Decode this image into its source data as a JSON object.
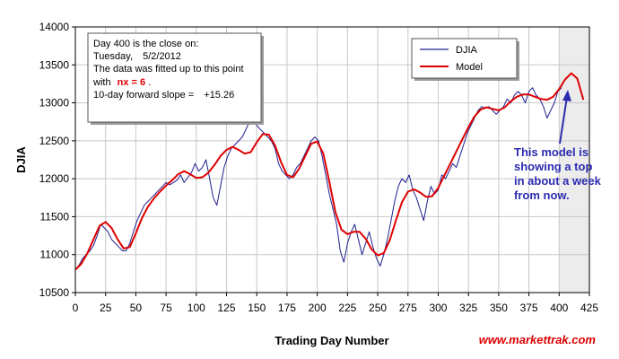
{
  "chart_data": {
    "type": "line",
    "title": "",
    "xlabel": "Trading Day Number",
    "ylabel": "DJIA",
    "xlim": [
      0,
      425
    ],
    "ylim": [
      10500,
      14000
    ],
    "x_ticks": [
      "0",
      "25",
      "50",
      "75",
      "100",
      "125",
      "150",
      "175",
      "200",
      "225",
      "250",
      "275",
      "300",
      "325",
      "350",
      "375",
      "400",
      "425"
    ],
    "y_ticks": [
      "10500",
      "11000",
      "11500",
      "12000",
      "12500",
      "13000",
      "13500",
      "14000"
    ],
    "grid": true,
    "legend_position": "top-right",
    "forecast_region": [
      400,
      425
    ],
    "series": [
      {
        "name": "DJIA",
        "color": "#1f1f8f",
        "points": [
          [
            0,
            10800
          ],
          [
            3,
            10860
          ],
          [
            6,
            10950
          ],
          [
            9,
            11000
          ],
          [
            12,
            11050
          ],
          [
            15,
            11120
          ],
          [
            18,
            11250
          ],
          [
            21,
            11400
          ],
          [
            24,
            11350
          ],
          [
            27,
            11300
          ],
          [
            30,
            11200
          ],
          [
            33,
            11150
          ],
          [
            36,
            11100
          ],
          [
            39,
            11050
          ],
          [
            42,
            11050
          ],
          [
            45,
            11150
          ],
          [
            48,
            11300
          ],
          [
            51,
            11450
          ],
          [
            54,
            11550
          ],
          [
            57,
            11650
          ],
          [
            60,
            11700
          ],
          [
            63,
            11750
          ],
          [
            66,
            11800
          ],
          [
            69,
            11850
          ],
          [
            72,
            11900
          ],
          [
            75,
            11950
          ],
          [
            78,
            11920
          ],
          [
            81,
            11950
          ],
          [
            84,
            11980
          ],
          [
            87,
            12050
          ],
          [
            90,
            11950
          ],
          [
            93,
            12020
          ],
          [
            96,
            12080
          ],
          [
            99,
            12200
          ],
          [
            102,
            12100
          ],
          [
            105,
            12150
          ],
          [
            108,
            12250
          ],
          [
            111,
            12000
          ],
          [
            114,
            11750
          ],
          [
            117,
            11650
          ],
          [
            120,
            11900
          ],
          [
            123,
            12150
          ],
          [
            126,
            12300
          ],
          [
            129,
            12400
          ],
          [
            132,
            12450
          ],
          [
            135,
            12500
          ],
          [
            138,
            12550
          ],
          [
            141,
            12650
          ],
          [
            144,
            12750
          ],
          [
            147,
            12800
          ],
          [
            150,
            12700
          ],
          [
            153,
            12650
          ],
          [
            156,
            12600
          ],
          [
            159,
            12550
          ],
          [
            162,
            12500
          ],
          [
            165,
            12400
          ],
          [
            168,
            12200
          ],
          [
            171,
            12100
          ],
          [
            174,
            12050
          ],
          [
            177,
            12000
          ],
          [
            180,
            12050
          ],
          [
            183,
            12150
          ],
          [
            186,
            12200
          ],
          [
            189,
            12300
          ],
          [
            192,
            12400
          ],
          [
            195,
            12500
          ],
          [
            198,
            12550
          ],
          [
            201,
            12500
          ],
          [
            204,
            12300
          ],
          [
            207,
            12050
          ],
          [
            210,
            11800
          ],
          [
            213,
            11600
          ],
          [
            216,
            11400
          ],
          [
            219,
            11050
          ],
          [
            222,
            10900
          ],
          [
            225,
            11150
          ],
          [
            228,
            11300
          ],
          [
            231,
            11400
          ],
          [
            234,
            11200
          ],
          [
            237,
            11000
          ],
          [
            240,
            11150
          ],
          [
            243,
            11300
          ],
          [
            246,
            11100
          ],
          [
            249,
            10950
          ],
          [
            252,
            10850
          ],
          [
            255,
            11000
          ],
          [
            258,
            11200
          ],
          [
            261,
            11450
          ],
          [
            264,
            11700
          ],
          [
            267,
            11900
          ],
          [
            270,
            12000
          ],
          [
            273,
            11950
          ],
          [
            276,
            12050
          ],
          [
            279,
            11850
          ],
          [
            282,
            11750
          ],
          [
            285,
            11600
          ],
          [
            288,
            11450
          ],
          [
            291,
            11700
          ],
          [
            294,
            11900
          ],
          [
            297,
            11800
          ],
          [
            300,
            11850
          ],
          [
            303,
            12050
          ],
          [
            306,
            12000
          ],
          [
            309,
            12100
          ],
          [
            312,
            12200
          ],
          [
            315,
            12150
          ],
          [
            318,
            12300
          ],
          [
            321,
            12450
          ],
          [
            324,
            12600
          ],
          [
            327,
            12700
          ],
          [
            330,
            12800
          ],
          [
            333,
            12900
          ],
          [
            336,
            12950
          ],
          [
            339,
            12930
          ],
          [
            342,
            12950
          ],
          [
            345,
            12900
          ],
          [
            348,
            12850
          ],
          [
            351,
            12900
          ],
          [
            354,
            12950
          ],
          [
            357,
            13050
          ],
          [
            360,
            13000
          ],
          [
            363,
            13100
          ],
          [
            366,
            13150
          ],
          [
            369,
            13100
          ],
          [
            372,
            13000
          ],
          [
            375,
            13150
          ],
          [
            378,
            13200
          ],
          [
            381,
            13100
          ],
          [
            384,
            13050
          ],
          [
            387,
            12950
          ],
          [
            390,
            12800
          ],
          [
            393,
            12900
          ],
          [
            396,
            13000
          ],
          [
            399,
            13150
          ],
          [
            402,
            13200
          ]
        ]
      },
      {
        "name": "Model",
        "color": "#e00000",
        "points": [
          [
            0,
            10800
          ],
          [
            5,
            10880
          ],
          [
            10,
            11020
          ],
          [
            15,
            11200
          ],
          [
            20,
            11380
          ],
          [
            25,
            11430
          ],
          [
            30,
            11350
          ],
          [
            35,
            11200
          ],
          [
            40,
            11080
          ],
          [
            45,
            11100
          ],
          [
            50,
            11280
          ],
          [
            55,
            11480
          ],
          [
            60,
            11630
          ],
          [
            65,
            11740
          ],
          [
            70,
            11830
          ],
          [
            75,
            11910
          ],
          [
            80,
            11980
          ],
          [
            85,
            12060
          ],
          [
            90,
            12100
          ],
          [
            95,
            12060
          ],
          [
            100,
            12010
          ],
          [
            105,
            12020
          ],
          [
            110,
            12080
          ],
          [
            115,
            12180
          ],
          [
            120,
            12300
          ],
          [
            125,
            12380
          ],
          [
            130,
            12420
          ],
          [
            135,
            12380
          ],
          [
            140,
            12330
          ],
          [
            145,
            12350
          ],
          [
            150,
            12480
          ],
          [
            155,
            12590
          ],
          [
            160,
            12580
          ],
          [
            165,
            12440
          ],
          [
            170,
            12220
          ],
          [
            175,
            12050
          ],
          [
            180,
            12020
          ],
          [
            185,
            12130
          ],
          [
            190,
            12300
          ],
          [
            195,
            12460
          ],
          [
            200,
            12490
          ],
          [
            205,
            12330
          ],
          [
            210,
            11960
          ],
          [
            215,
            11560
          ],
          [
            220,
            11330
          ],
          [
            225,
            11270
          ],
          [
            230,
            11300
          ],
          [
            235,
            11300
          ],
          [
            240,
            11210
          ],
          [
            245,
            11070
          ],
          [
            250,
            10990
          ],
          [
            255,
            11020
          ],
          [
            260,
            11190
          ],
          [
            265,
            11450
          ],
          [
            270,
            11690
          ],
          [
            275,
            11830
          ],
          [
            280,
            11860
          ],
          [
            285,
            11820
          ],
          [
            290,
            11760
          ],
          [
            295,
            11770
          ],
          [
            300,
            11880
          ],
          [
            305,
            12040
          ],
          [
            310,
            12200
          ],
          [
            315,
            12360
          ],
          [
            320,
            12520
          ],
          [
            325,
            12680
          ],
          [
            330,
            12820
          ],
          [
            335,
            12910
          ],
          [
            340,
            12940
          ],
          [
            345,
            12920
          ],
          [
            350,
            12900
          ],
          [
            355,
            12940
          ],
          [
            360,
            13020
          ],
          [
            365,
            13080
          ],
          [
            370,
            13110
          ],
          [
            375,
            13110
          ],
          [
            380,
            13080
          ],
          [
            385,
            13050
          ],
          [
            390,
            13040
          ],
          [
            395,
            13080
          ],
          [
            400,
            13180
          ],
          [
            405,
            13310
          ],
          [
            410,
            13390
          ],
          [
            415,
            13320
          ],
          [
            420,
            13040
          ]
        ]
      }
    ],
    "info_box": {
      "line1": "Day 400 is the close on:",
      "line2_day": "Tuesday,",
      "line2_date": "5/2/2012",
      "line3": "The data was fitted up to this point",
      "line4_prefix": "with",
      "line4_param": "nx = 6",
      "line4_suffix": ".",
      "line5_label": "10-day forward slope =",
      "line5_value": "+15.26"
    },
    "annotation": [
      "This model is",
      "showing a top",
      "in about a week",
      "from now."
    ],
    "watermark": "www.markettrak.com"
  }
}
